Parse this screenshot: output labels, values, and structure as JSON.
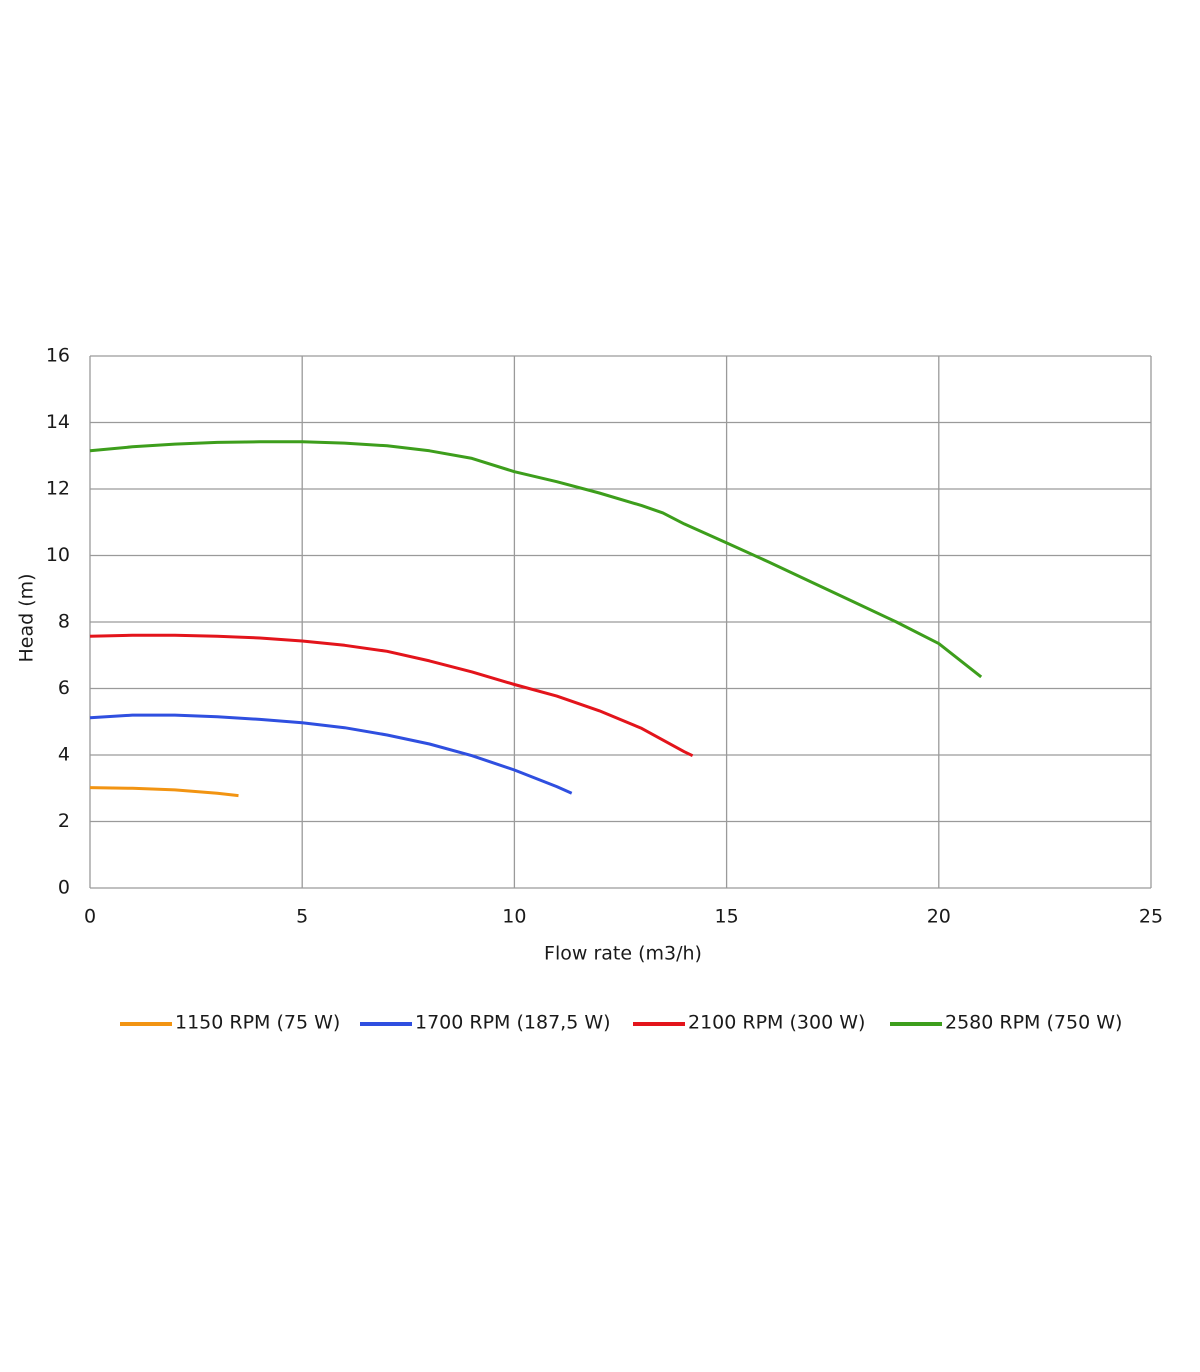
{
  "chart_data": {
    "type": "line",
    "x_label": "Flow rate (m3/h)",
    "y_label": "Head (m)",
    "xlim": [
      0,
      25
    ],
    "xticks": [
      0,
      5,
      10,
      15,
      20,
      25
    ],
    "ylim": [
      0,
      16
    ],
    "yticks": [
      0,
      2,
      4,
      6,
      8,
      10,
      12,
      14,
      16
    ],
    "grid": true,
    "legend": "bottom",
    "series": [
      {
        "name": "1150 RPM (75 W)",
        "color": "#f29412",
        "x": [
          0,
          1,
          2,
          3,
          3.5
        ],
        "values": [
          3.02,
          3.0,
          2.95,
          2.85,
          2.78
        ]
      },
      {
        "name": "1700 RPM (187,5 W)",
        "color": "#2f4fe0",
        "x": [
          0,
          1,
          2,
          3,
          4,
          5,
          6,
          7,
          8,
          9,
          10,
          11,
          11.35
        ],
        "values": [
          5.12,
          5.2,
          5.2,
          5.15,
          5.07,
          4.97,
          4.82,
          4.6,
          4.33,
          3.98,
          3.55,
          3.05,
          2.85
        ]
      },
      {
        "name": "2100 RPM (300 W)",
        "color": "#e3141b",
        "x": [
          0,
          1,
          2,
          3,
          4,
          5,
          6,
          7,
          8,
          9,
          10,
          11,
          12,
          13,
          14,
          14.2
        ],
        "values": [
          7.57,
          7.6,
          7.6,
          7.57,
          7.52,
          7.43,
          7.3,
          7.12,
          6.83,
          6.5,
          6.12,
          5.77,
          5.33,
          4.8,
          4.1,
          3.98
        ]
      },
      {
        "name": "2580 RPM (750 W)",
        "color": "#3d9e1c",
        "x": [
          0,
          1,
          2,
          3,
          4,
          5,
          6,
          7,
          8,
          9,
          10,
          11,
          12,
          13,
          13.5,
          14,
          15,
          16,
          17,
          18,
          19,
          20,
          21
        ],
        "values": [
          13.15,
          13.27,
          13.35,
          13.4,
          13.42,
          13.42,
          13.38,
          13.3,
          13.15,
          12.92,
          12.52,
          12.22,
          11.88,
          11.5,
          11.28,
          10.95,
          10.38,
          9.8,
          9.2,
          8.6,
          8.0,
          7.35,
          6.35
        ]
      }
    ]
  }
}
